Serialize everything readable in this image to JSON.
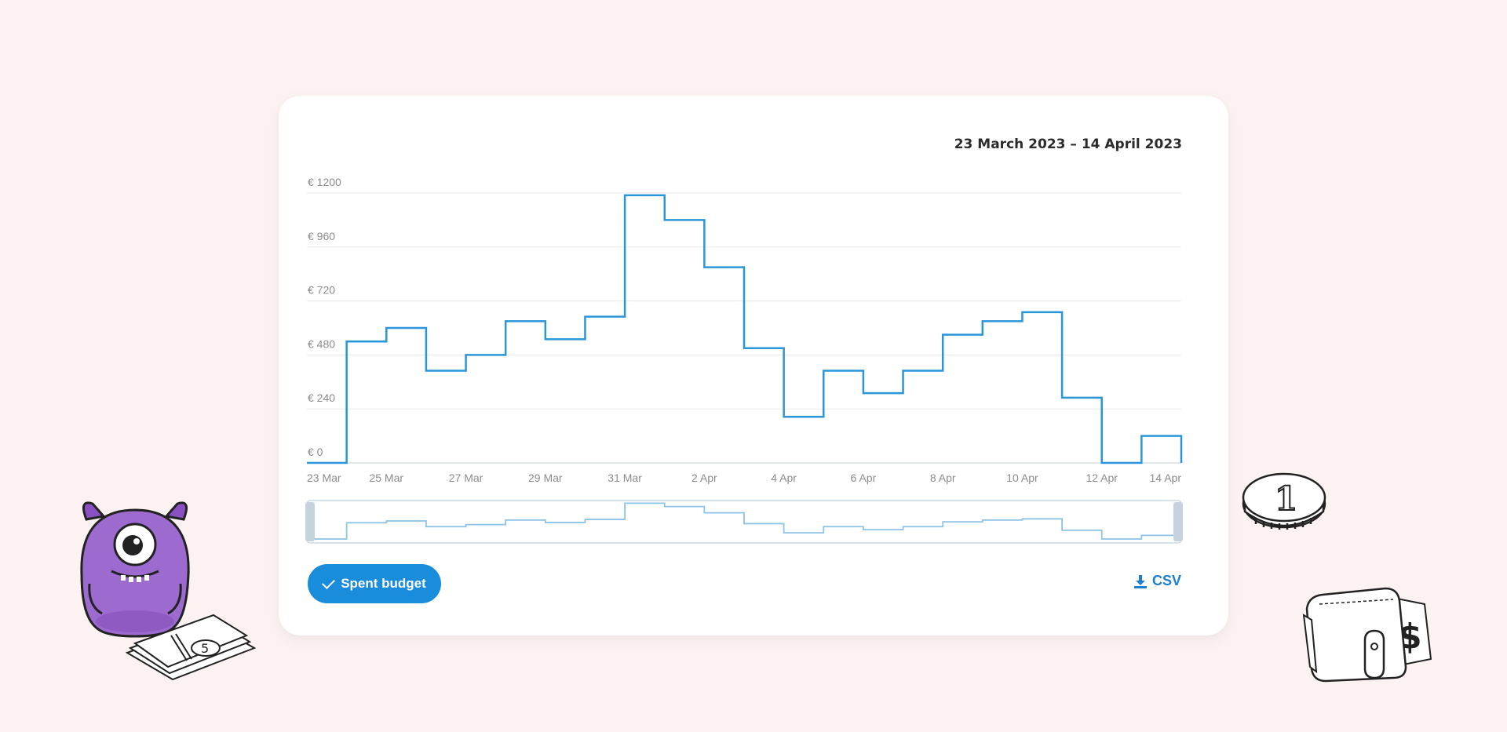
{
  "date_range": "23 March 2023 – 14 April 2023",
  "legend_button": {
    "label": "Spent budget",
    "icon": "check-icon"
  },
  "csv_button": {
    "label": "CSV",
    "icon": "download-icon"
  },
  "colors": {
    "line": "#2a95d8",
    "navigator_line": "#8cc3e6",
    "button": "#1a8cdc",
    "background": "#fdf2f2"
  },
  "decorations": [
    "monster-mascot",
    "money-stack",
    "coin-one",
    "wallet-dollar"
  ],
  "chart_data": {
    "type": "line",
    "step": true,
    "ylim": [
      0,
      1200
    ],
    "y_ticks": [
      0,
      240,
      480,
      720,
      960,
      1200
    ],
    "y_tick_labels": [
      "€ 0",
      "€ 240",
      "€ 480",
      "€ 720",
      "€ 960",
      "€ 1200"
    ],
    "x_tick_labels": [
      "23 Mar",
      "25 Mar",
      "27 Mar",
      "29 Mar",
      "31 Mar",
      "2 Apr",
      "4 Apr",
      "6 Apr",
      "8 Apr",
      "10 Apr",
      "12 Apr",
      "14 Apr"
    ],
    "x": [
      "23 Mar",
      "24 Mar",
      "25 Mar",
      "26 Mar",
      "27 Mar",
      "28 Mar",
      "29 Mar",
      "30 Mar",
      "31 Mar",
      "1 Apr",
      "2 Apr",
      "3 Apr",
      "4 Apr",
      "5 Apr",
      "6 Apr",
      "7 Apr",
      "8 Apr",
      "9 Apr",
      "10 Apr",
      "11 Apr",
      "12 Apr",
      "13 Apr",
      "14 Apr"
    ],
    "values": [
      0,
      540,
      600,
      410,
      480,
      630,
      550,
      650,
      1190,
      1080,
      870,
      510,
      205,
      410,
      310,
      410,
      570,
      630,
      670,
      290,
      0,
      120,
      0
    ],
    "grid": true,
    "navigator": true
  }
}
